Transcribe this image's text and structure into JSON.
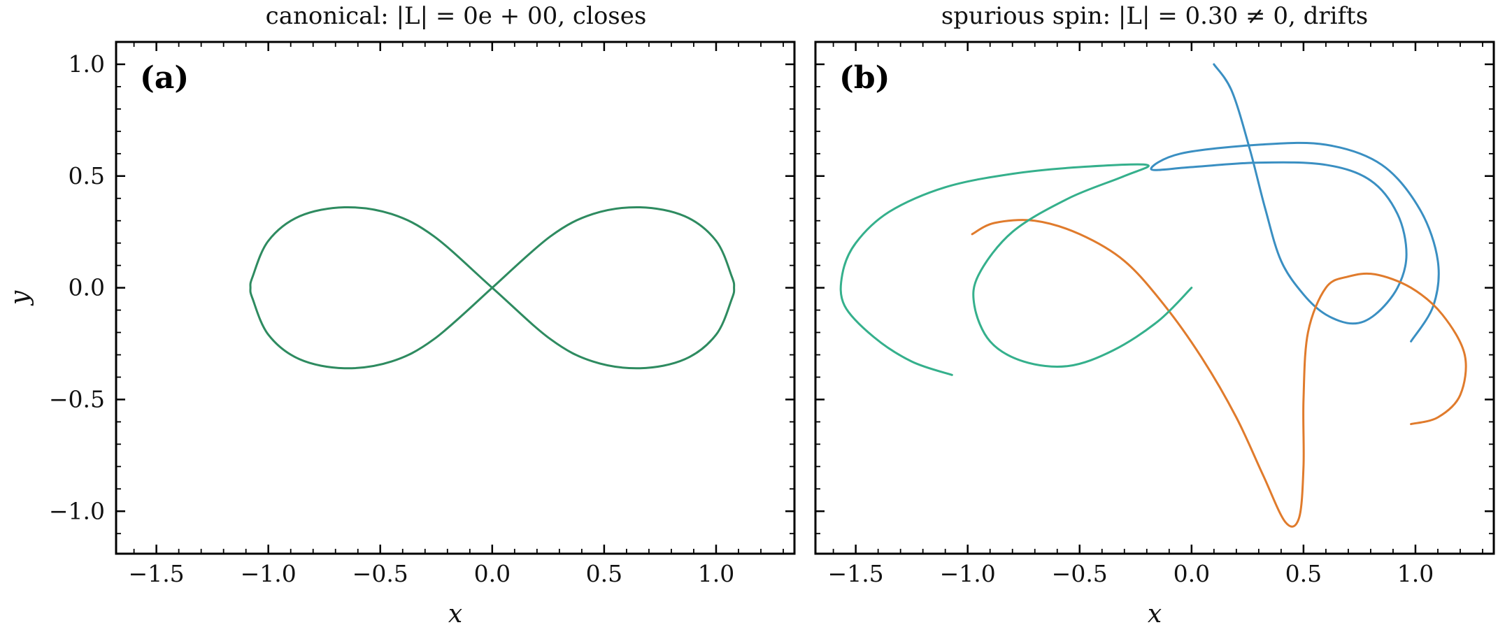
{
  "chart_data": [
    {
      "type": "line",
      "panel_label": "(a)",
      "title": "canonical: |L| = 0e + 00, closes",
      "xlabel": "x",
      "ylabel": "y",
      "xlim": [
        -1.68,
        1.35
      ],
      "ylim": [
        -1.19,
        1.1
      ],
      "x_ticks": [
        -1.5,
        -1.0,
        -0.5,
        0.0,
        0.5,
        1.0
      ],
      "x_tick_labels": [
        "−1.5",
        "−1.0",
        "−0.5",
        "0.0",
        "0.5",
        "1.0"
      ],
      "y_ticks": [
        1.0,
        0.5,
        0.0,
        -0.5,
        -1.0
      ],
      "y_tick_labels": [
        "1.0",
        "0.5",
        "0.0",
        "−0.5",
        "−1.0"
      ],
      "grid": false,
      "series": [
        {
          "color": "#2e8b60",
          "points": [
            [
              0.0,
              0.0
            ],
            [
              0.26,
              0.23
            ],
            [
              0.45,
              0.33
            ],
            [
              0.66,
              0.36
            ],
            [
              0.86,
              0.32
            ],
            [
              1.0,
              0.21
            ],
            [
              1.07,
              0.05
            ],
            [
              1.08,
              0.0
            ],
            [
              1.07,
              -0.05
            ],
            [
              1.0,
              -0.21
            ],
            [
              0.86,
              -0.32
            ],
            [
              0.66,
              -0.36
            ],
            [
              0.45,
              -0.33
            ],
            [
              0.26,
              -0.23
            ],
            [
              0.0,
              0.0
            ],
            [
              -0.26,
              0.23
            ],
            [
              -0.45,
              0.33
            ],
            [
              -0.66,
              0.36
            ],
            [
              -0.86,
              0.32
            ],
            [
              -1.0,
              0.21
            ],
            [
              -1.07,
              0.05
            ],
            [
              -1.08,
              0.0
            ],
            [
              -1.07,
              -0.05
            ],
            [
              -1.0,
              -0.21
            ],
            [
              -0.86,
              -0.32
            ],
            [
              -0.66,
              -0.36
            ],
            [
              -0.45,
              -0.33
            ],
            [
              -0.26,
              -0.23
            ],
            [
              0.0,
              0.0
            ]
          ]
        }
      ]
    },
    {
      "type": "line",
      "panel_label": "(b)",
      "title": "spurious spin: |L| = 0.30 ≠ 0, drifts",
      "xlabel": "x",
      "ylabel": "",
      "xlim": [
        -1.68,
        1.35
      ],
      "ylim": [
        -1.19,
        1.1
      ],
      "x_ticks": [
        -1.5,
        -1.0,
        -0.5,
        0.0,
        0.5,
        1.0
      ],
      "x_tick_labels": [
        "−1.5",
        "−1.0",
        "−0.5",
        "0.0",
        "0.5",
        "1.0"
      ],
      "y_ticks": [
        1.0,
        0.5,
        0.0,
        -0.5,
        -1.0
      ],
      "y_tick_labels": [],
      "grid": false,
      "series": [
        {
          "color": "#3a8fc2",
          "points": [
            [
              0.1,
              1.0
            ],
            [
              0.18,
              0.88
            ],
            [
              0.26,
              0.62
            ],
            [
              0.33,
              0.35
            ],
            [
              0.4,
              0.12
            ],
            [
              0.5,
              -0.03
            ],
            [
              0.6,
              -0.12
            ],
            [
              0.72,
              -0.16
            ],
            [
              0.82,
              -0.12
            ],
            [
              0.92,
              0.0
            ],
            [
              0.96,
              0.15
            ],
            [
              0.92,
              0.33
            ],
            [
              0.8,
              0.48
            ],
            [
              0.6,
              0.55
            ],
            [
              0.3,
              0.56
            ],
            [
              0.0,
              0.54
            ],
            [
              -0.18,
              0.53
            ],
            [
              -0.05,
              0.6
            ],
            [
              0.3,
              0.64
            ],
            [
              0.6,
              0.64
            ],
            [
              0.85,
              0.55
            ],
            [
              1.02,
              0.35
            ],
            [
              1.1,
              0.12
            ],
            [
              1.08,
              -0.08
            ],
            [
              0.98,
              -0.24
            ]
          ]
        },
        {
          "color": "#e07b2c",
          "points": [
            [
              -0.98,
              0.24
            ],
            [
              -0.88,
              0.29
            ],
            [
              -0.7,
              0.3
            ],
            [
              -0.5,
              0.24
            ],
            [
              -0.3,
              0.12
            ],
            [
              -0.12,
              -0.08
            ],
            [
              0.05,
              -0.32
            ],
            [
              0.2,
              -0.58
            ],
            [
              0.32,
              -0.84
            ],
            [
              0.42,
              -1.05
            ],
            [
              0.48,
              -1.03
            ],
            [
              0.5,
              -0.8
            ],
            [
              0.5,
              -0.5
            ],
            [
              0.52,
              -0.2
            ],
            [
              0.6,
              0.0
            ],
            [
              0.7,
              0.05
            ],
            [
              0.82,
              0.06
            ],
            [
              0.98,
              0.0
            ],
            [
              1.12,
              -0.12
            ],
            [
              1.22,
              -0.3
            ],
            [
              1.2,
              -0.48
            ],
            [
              1.1,
              -0.58
            ],
            [
              0.98,
              -0.61
            ]
          ]
        },
        {
          "color": "#35b08c",
          "points": [
            [
              -1.07,
              -0.39
            ],
            [
              -1.25,
              -0.33
            ],
            [
              -1.42,
              -0.22
            ],
            [
              -1.55,
              -0.08
            ],
            [
              -1.56,
              0.06
            ],
            [
              -1.5,
              0.2
            ],
            [
              -1.35,
              0.34
            ],
            [
              -1.1,
              0.45
            ],
            [
              -0.8,
              0.51
            ],
            [
              -0.5,
              0.54
            ],
            [
              -0.2,
              0.55
            ],
            [
              -0.3,
              0.5
            ],
            [
              -0.55,
              0.4
            ],
            [
              -0.8,
              0.25
            ],
            [
              -0.95,
              0.06
            ],
            [
              -0.97,
              -0.08
            ],
            [
              -0.9,
              -0.24
            ],
            [
              -0.75,
              -0.33
            ],
            [
              -0.55,
              -0.35
            ],
            [
              -0.35,
              -0.28
            ],
            [
              -0.15,
              -0.15
            ],
            [
              0.0,
              0.0
            ]
          ]
        }
      ]
    }
  ]
}
